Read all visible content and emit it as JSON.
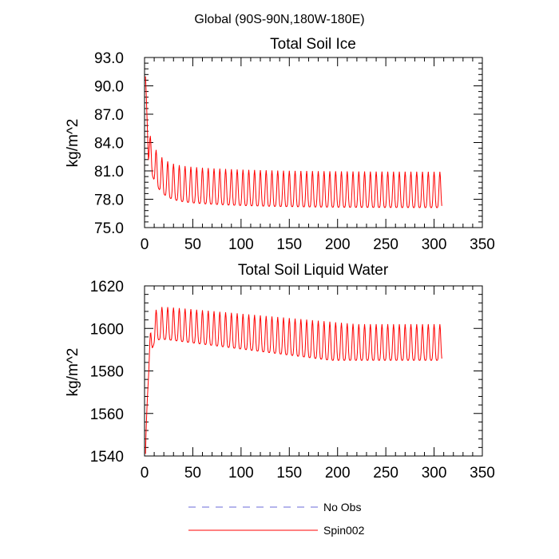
{
  "figure_title": "Global (90S-90N,180W-180E)",
  "colors": {
    "spin002": "#ff0000",
    "no_obs": "#6a6ad8",
    "axis": "#000000"
  },
  "chart_data": [
    {
      "type": "line",
      "title": "Total Soil Ice",
      "xlabel": "",
      "ylabel": "kg/m^2",
      "xlim": [
        0,
        350
      ],
      "ylim": [
        75.0,
        93.0
      ],
      "xticks": [
        0,
        50,
        100,
        150,
        200,
        250,
        300,
        350
      ],
      "yticks": [
        75.0,
        78.0,
        81.0,
        84.0,
        87.0,
        90.0,
        93.0
      ],
      "ytick_labels": [
        "75.0",
        "78.0",
        "81.0",
        "84.0",
        "87.0",
        "90.0",
        "93.0"
      ],
      "series_model": {
        "name": "Spin002",
        "x_start": 1,
        "x_end": 308,
        "start_value": 91.0,
        "period": 6,
        "decay_scale": 9,
        "long_decay_scale": 70,
        "peak_final": 80.9,
        "peak_initial_excess": 5.0,
        "trough_final": 77.1,
        "trough_initial_excess": 5.5,
        "long_term_drift": 1.0
      }
    },
    {
      "type": "line",
      "title": "Total Soil Liquid Water",
      "xlabel": "",
      "ylabel": "kg/m^2",
      "xlim": [
        0,
        350
      ],
      "ylim": [
        1540,
        1620
      ],
      "xticks": [
        0,
        50,
        100,
        150,
        200,
        250,
        300,
        350
      ],
      "yticks": [
        1540,
        1560,
        1580,
        1600,
        1620
      ],
      "ytick_labels": [
        "1540",
        "1560",
        "1580",
        "1600",
        "1620"
      ],
      "series_model": {
        "name": "Spin002",
        "x_start": 1,
        "x_end": 308,
        "start_value": 1541,
        "rise_scale": 3,
        "period": 6,
        "peak_start": 1611,
        "peak_end": 1602,
        "trough_start": 1596,
        "trough_end": 1585
      }
    }
  ],
  "legend": {
    "placement": "bottom-center",
    "entries": [
      {
        "label": "No Obs",
        "style": "dashed"
      },
      {
        "label": "Spin002",
        "style": "solid"
      }
    ]
  }
}
